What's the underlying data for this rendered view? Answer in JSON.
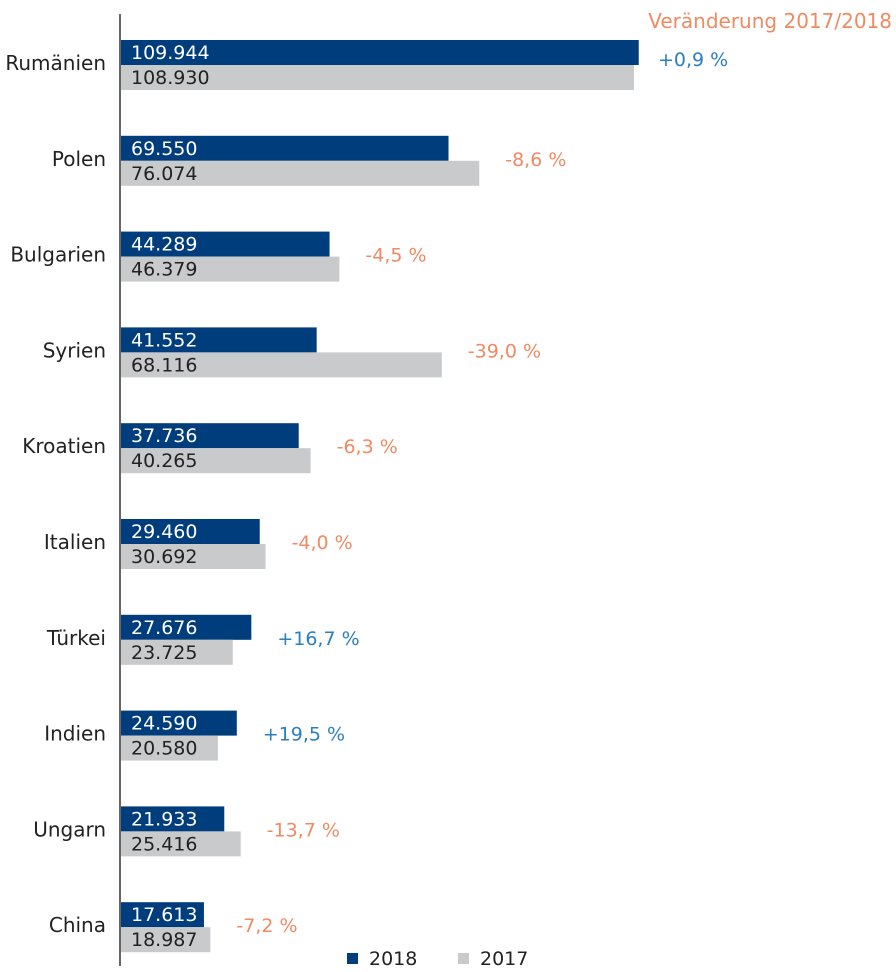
{
  "chart_data": {
    "type": "bar",
    "orientation": "horizontal",
    "change_header": "Veränderung 2017/2018",
    "categories": [
      "Rumänien",
      "Polen",
      "Bulgarien",
      "Syrien",
      "Kroatien",
      "Italien",
      "Türkei",
      "Indien",
      "Ungarn",
      "China"
    ],
    "series": [
      {
        "name": "2018",
        "color": "#003d7c",
        "values": [
          109944,
          69550,
          44289,
          41552,
          37736,
          29460,
          27676,
          24590,
          21933,
          17613
        ],
        "labels": [
          "109.944",
          "69.550",
          "44.289",
          "41.552",
          "37.736",
          "29.460",
          "27.676",
          "24.590",
          "21.933",
          "17.613"
        ]
      },
      {
        "name": "2017",
        "color": "#c9cacc",
        "values": [
          108930,
          76074,
          46379,
          68116,
          40265,
          30692,
          23725,
          20580,
          25416,
          18987
        ],
        "labels": [
          "108.930",
          "76.074",
          "46.379",
          "68.116",
          "40.265",
          "30.692",
          "23.725",
          "20.580",
          "25.416",
          "18.987"
        ]
      }
    ],
    "changes": [
      "+0,9 %",
      "-8,6 %",
      "-4,5 %",
      "-39,0 %",
      "-6,3 %",
      "-4,0 %",
      "+16,7 %",
      "+19,5 %",
      "-13,7 %",
      "-7,2 %"
    ],
    "colors": {
      "positive": "#2a7fc0",
      "negative": "#ef8a62",
      "header": "#ef8a62",
      "axis": "#333333"
    },
    "xlim": [
      0,
      110000
    ],
    "legend_position": "bottom",
    "grid": false
  }
}
